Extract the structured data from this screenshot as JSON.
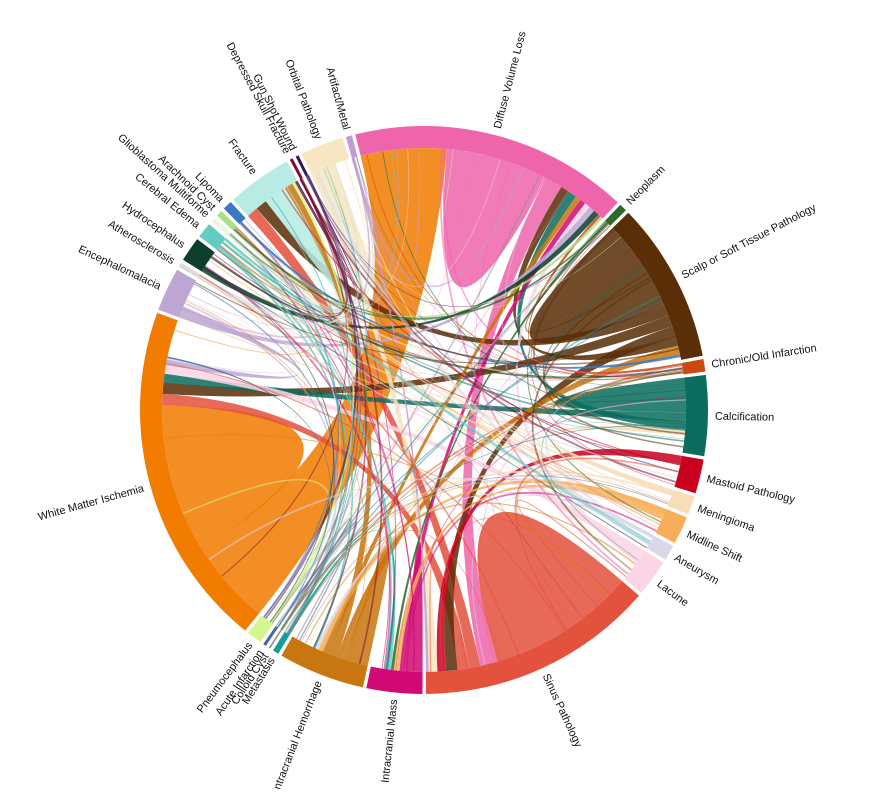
{
  "chart_data": {
    "type": "chord",
    "title": "",
    "groups": [
      {
        "name": "Diffuse Volume Loss",
        "value": 80,
        "color": "#ee65ab"
      },
      {
        "name": "Neoplasm",
        "value": 2.5,
        "color": "#2d6a2a"
      },
      {
        "name": "Scalp or Soft Tissue Pathology",
        "value": 52,
        "color": "#5a2f08"
      },
      {
        "name": "Chronic/Old Infarction",
        "value": 4,
        "color": "#cc4a10"
      },
      {
        "name": "Calcification",
        "value": 26,
        "color": "#0b6d5e"
      },
      {
        "name": "Mastoid Pathology",
        "value": 11,
        "color": "#c9001f"
      },
      {
        "name": "Meningioma",
        "value": 6,
        "color": "#f7ddb8"
      },
      {
        "name": "Midline Shift",
        "value": 9,
        "color": "#f8ae58"
      },
      {
        "name": "Aneurysm",
        "value": 5,
        "color": "#dbd7ea"
      },
      {
        "name": "Lacune",
        "value": 12,
        "color": "#fbd5e5"
      },
      {
        "name": "Sinus Pathology",
        "value": 77,
        "color": "#e3523d"
      },
      {
        "name": "Intracranial Mass",
        "value": 18,
        "color": "#d10a75"
      },
      {
        "name": "Intracranial Hemorrhage",
        "value": 28,
        "color": "#c8760f"
      },
      {
        "name": "Metastasis",
        "value": 2,
        "color": "#149e97"
      },
      {
        "name": "Colloid Cyst",
        "value": 0.5,
        "color": "#8c8c8c"
      },
      {
        "name": "Acute Infarction",
        "value": 1,
        "color": "#3c6aa6"
      },
      {
        "name": "Pneumocephalus",
        "value": 5,
        "color": "#d7f58f"
      },
      {
        "name": "White Matter Ischemia",
        "value": 112,
        "color": "#f17c00"
      },
      {
        "name": "Encephalomalacia",
        "value": 14,
        "color": "#bda6d4"
      },
      {
        "name": "Atherosclerosis",
        "value": 1.5,
        "color": "#dcdcdc"
      },
      {
        "name": "Hydrocephalus",
        "value": 8,
        "color": "#0d3e2c"
      },
      {
        "name": "Cerebral Edema",
        "value": 5,
        "color": "#62ccc0"
      },
      {
        "name": "Glioblastoma Multiforme",
        "value": 1.5,
        "color": "#eaf8da"
      },
      {
        "name": "Arachnoid Cyst",
        "value": 2,
        "color": "#adde8a"
      },
      {
        "name": "Lipoma",
        "value": 3,
        "color": "#3a78c0"
      },
      {
        "name": "Fracture",
        "value": 20,
        "color": "#b7ebe3"
      },
      {
        "name": "Depressed Skull Fracture",
        "value": 1,
        "color": "#7a1030"
      },
      {
        "name": "Gun Shot Wound",
        "value": 1,
        "color": "#3a1560"
      },
      {
        "name": "Orbital Pathology",
        "value": 14,
        "color": "#f6e6c2"
      },
      {
        "name": "Artifact/Metal",
        "value": 2,
        "color": "#c49bd0"
      }
    ],
    "links": [
      {
        "source": "White Matter Ischemia",
        "target": "Diffuse Volume Loss",
        "value": 30
      },
      {
        "source": "White Matter Ischemia",
        "target": "White Matter Ischemia",
        "value": 26
      },
      {
        "source": "Sinus Pathology",
        "target": "Sinus Pathology",
        "value": 26
      },
      {
        "source": "Diffuse Volume Loss",
        "target": "Diffuse Volume Loss",
        "value": 18
      },
      {
        "source": "Scalp or Soft Tissue Pathology",
        "target": "Scalp or Soft Tissue Pathology",
        "value": 16
      },
      {
        "source": "Diffuse Volume Loss",
        "target": "Sinus Pathology",
        "value": 6
      },
      {
        "source": "Sinus Pathology",
        "target": "Fracture",
        "value": 4
      },
      {
        "source": "Sinus Pathology",
        "target": "White Matter Ischemia",
        "value": 4
      },
      {
        "source": "Scalp or Soft Tissue Pathology",
        "target": "Fracture",
        "value": 4
      },
      {
        "source": "Scalp or Soft Tissue Pathology",
        "target": "White Matter Ischemia",
        "value": 4
      },
      {
        "source": "Scalp or Soft Tissue Pathology",
        "target": "Sinus Pathology",
        "value": 4
      },
      {
        "source": "Scalp or Soft Tissue Pathology",
        "target": "Diffuse Volume Loss",
        "value": 3
      },
      {
        "source": "Calcification",
        "target": "White Matter Ischemia",
        "value": 3
      },
      {
        "source": "Calcification",
        "target": "Diffuse Volume Loss",
        "value": 3
      },
      {
        "source": "Intracranial Hemorrhage",
        "target": "Scalp or Soft Tissue Pathology",
        "value": 3
      },
      {
        "source": "Intracranial Hemorrhage",
        "target": "Fracture",
        "value": 3
      },
      {
        "source": "Intracranial Hemorrhage",
        "target": "Diffuse Volume Loss",
        "value": 2
      },
      {
        "source": "Intracranial Mass",
        "target": "Diffuse Volume Loss",
        "value": 2
      },
      {
        "source": "Mastoid Pathology",
        "target": "Sinus Pathology",
        "value": 3
      },
      {
        "source": "Orbital Pathology",
        "target": "Sinus Pathology",
        "value": 3
      },
      {
        "source": "Lacune",
        "target": "White Matter Ischemia",
        "value": 3
      },
      {
        "source": "Lacune",
        "target": "Diffuse Volume Loss",
        "value": 2
      },
      {
        "source": "Encephalomalacia",
        "target": "Diffuse Volume Loss",
        "value": 2
      },
      {
        "source": "Encephalomalacia",
        "target": "White Matter Ischemia",
        "value": 2
      },
      {
        "source": "Hydrocephalus",
        "target": "Diffuse Volume Loss",
        "value": 2
      },
      {
        "source": "Midline Shift",
        "target": "Intracranial Hemorrhage",
        "value": 2
      },
      {
        "source": "Midline Shift",
        "target": "Intracranial Mass",
        "value": 2
      },
      {
        "source": "Meningioma",
        "target": "Calcification",
        "value": 2
      },
      {
        "source": "Fracture",
        "target": "Fracture",
        "value": 4
      },
      {
        "source": "Calcification",
        "target": "Calcification",
        "value": 6
      },
      {
        "source": "Intracranial Hemorrhage",
        "target": "Intracranial Hemorrhage",
        "value": 4
      },
      {
        "source": "Intracranial Mass",
        "target": "Intracranial Mass",
        "value": 3
      },
      {
        "source": "Orbital Pathology",
        "target": "Orbital Pathology",
        "value": 3
      },
      {
        "source": "Chronic/Old Infarction",
        "target": "Diffuse Volume Loss",
        "value": 1
      },
      {
        "source": "Aneurysm",
        "target": "Intracranial Hemorrhage",
        "value": 1
      },
      {
        "source": "Neoplasm",
        "target": "Intracranial Mass",
        "value": 1
      },
      {
        "source": "Pneumocephalus",
        "target": "Fracture",
        "value": 1
      },
      {
        "source": "Cerebral Edema",
        "target": "Intracranial Hemorrhage",
        "value": 1
      },
      {
        "source": "Cerebral Edema",
        "target": "Intracranial Mass",
        "value": 1
      },
      {
        "source": "Metastasis",
        "target": "Intracranial Mass",
        "value": 1
      },
      {
        "source": "Arachnoid Cyst",
        "target": "Diffuse Volume Loss",
        "value": 1
      },
      {
        "source": "Lipoma",
        "target": "Scalp or Soft Tissue Pathology",
        "value": 1
      },
      {
        "source": "Artifact/Metal",
        "target": "Sinus Pathology",
        "value": 1
      },
      {
        "source": "Depressed Skull Fracture",
        "target": "Fracture",
        "value": 0.5
      },
      {
        "source": "Gun Shot Wound",
        "target": "Fracture",
        "value": 0.5
      },
      {
        "source": "Glioblastoma Multiforme",
        "target": "Intracranial Mass",
        "value": 0.5
      },
      {
        "source": "Atherosclerosis",
        "target": "White Matter Ischemia",
        "value": 0.5
      },
      {
        "source": "Acute Infarction",
        "target": "White Matter Ischemia",
        "value": 0.5
      }
    ]
  }
}
